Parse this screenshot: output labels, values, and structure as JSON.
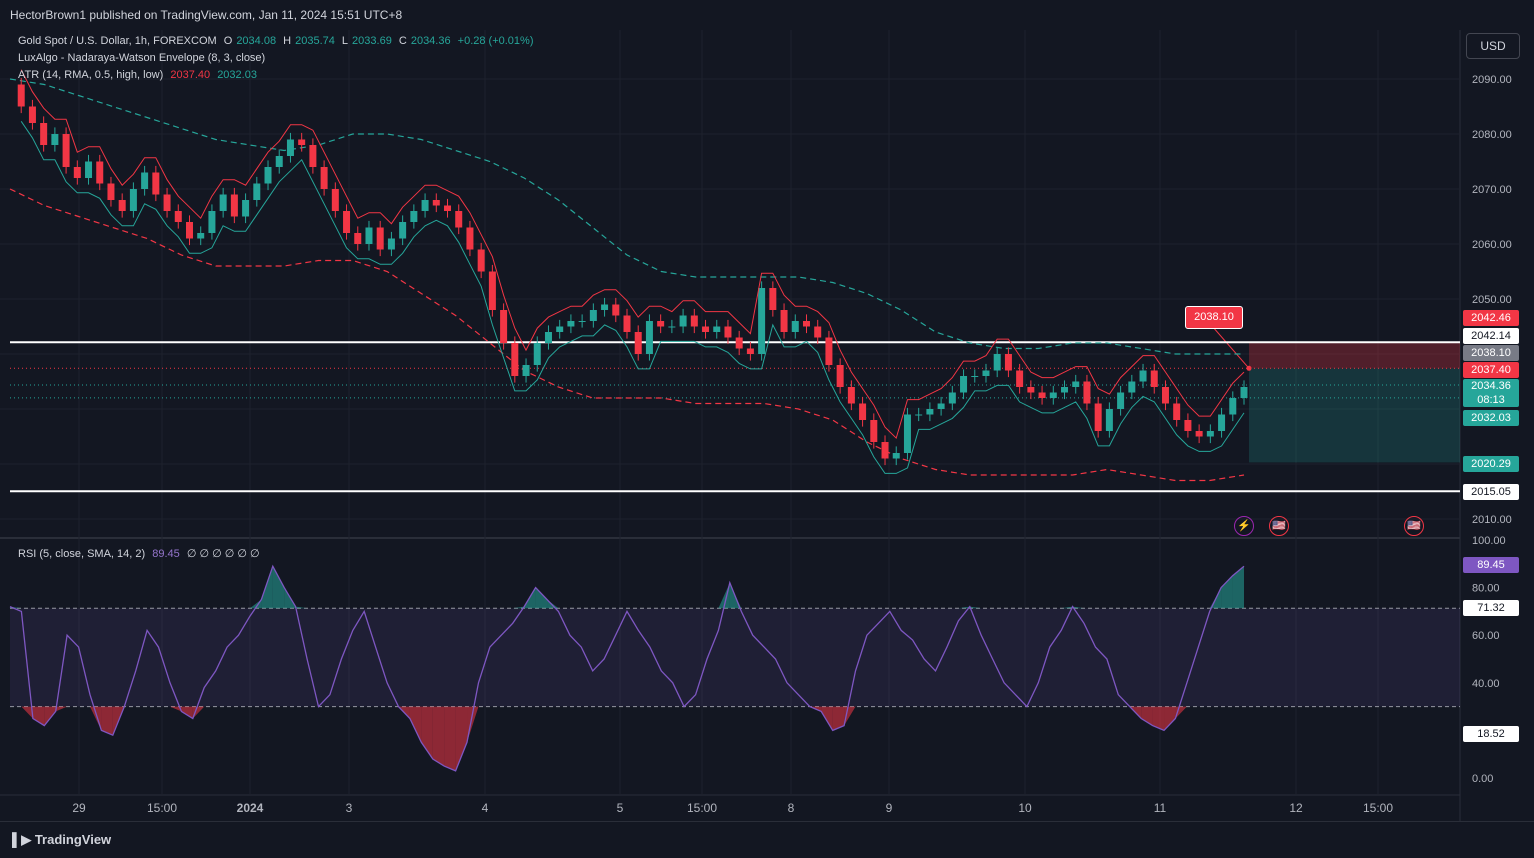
{
  "header": {
    "published": "HectorBrown1 published on TradingView.com, Jan 11, 2024 15:51 UTC+8"
  },
  "legend": {
    "symbol": "Gold Spot / U.S. Dollar, 1h, FOREXCOM",
    "o_label": "O",
    "o": "2034.08",
    "h_label": "H",
    "h": "2035.74",
    "l_label": "L",
    "l": "2033.69",
    "c_label": "C",
    "c": "2034.36",
    "change": "+0.28 (+0.01%)",
    "envelope": "LuxAlgo - Nadaraya-Watson Envelope (8, 3, close)",
    "atr": "ATR (14, RMA, 0.5, high, low)",
    "atr_high": "2037.40",
    "atr_low": "2032.03",
    "rsi": "RSI (5, close, SMA, 14, 2)",
    "rsi_value": "89.45",
    "rsi_na": "∅ ∅ ∅ ∅ ∅ ∅"
  },
  "currency_button": "USD",
  "price_tags": {
    "t1": "2042.46",
    "t2": "2042.14",
    "t3": "2038.10",
    "t4": "2037.40",
    "t5": "2034.36",
    "t5_time": "08:13",
    "t6": "2032.03",
    "t7": "2020.29",
    "t8": "2015.05",
    "rsi_t1": "89.45",
    "rsi_t2": "71.32",
    "rsi_t3": "18.52"
  },
  "callout": "2038.10",
  "events": {
    "flash": "⚡",
    "flag": "🇺🇸"
  },
  "footer": {
    "brand": "TradingView"
  },
  "colors": {
    "up": "#26a69a",
    "down": "#f23645",
    "rsi": "#7e57c2",
    "bg": "#131722"
  },
  "chart_data": [
    {
      "type": "candlestick",
      "title": "Gold Spot / U.S. Dollar, 1h, FOREXCOM",
      "price_axis": {
        "ticks": [
          "2090.00",
          "2080.00",
          "2070.00",
          "2060.00",
          "2050.00",
          "2010.00"
        ],
        "ylim": [
          2005,
          2095
        ]
      },
      "time_axis": {
        "labels": [
          "29",
          "15:00",
          "2024",
          "3",
          "4",
          "5",
          "15:00",
          "8",
          "9",
          "10",
          "11",
          "12",
          "15:00"
        ]
      },
      "horizontal_lines": [
        2042.14,
        2015.05
      ],
      "close_path": [
        2089,
        2085,
        2082,
        2078,
        2080,
        2074,
        2072,
        2075,
        2071,
        2068,
        2066,
        2070,
        2073,
        2069,
        2066,
        2064,
        2061,
        2062,
        2066,
        2069,
        2065,
        2068,
        2071,
        2074,
        2076,
        2079,
        2078,
        2074,
        2070,
        2066,
        2062,
        2060,
        2063,
        2059,
        2061,
        2064,
        2066,
        2068,
        2067,
        2066,
        2063,
        2059,
        2055,
        2048,
        2042,
        2036,
        2038,
        2042,
        2044,
        2045,
        2046,
        2046,
        2048,
        2049,
        2047,
        2044,
        2040,
        2046,
        2045,
        2045,
        2047,
        2045,
        2044,
        2045,
        2043,
        2041,
        2040,
        2052,
        2048,
        2044,
        2046,
        2045,
        2043,
        2038,
        2034,
        2031,
        2028,
        2024,
        2021,
        2022,
        2029,
        2029,
        2030,
        2031,
        2033,
        2036,
        2036,
        2037,
        2040,
        2037,
        2034,
        2033,
        2032,
        2033,
        2034,
        2035,
        2031,
        2026,
        2030,
        2033,
        2035,
        2037,
        2034,
        2031,
        2028,
        2026,
        2025,
        2026,
        2029,
        2032,
        2034
      ],
      "envelope_upper": [
        2090,
        2089,
        2087,
        2085,
        2083,
        2081,
        2079,
        2078,
        2077,
        2078,
        2080,
        2080,
        2079,
        2077,
        2075,
        2072,
        2068,
        2063,
        2058,
        2055,
        2054,
        2054,
        2054,
        2054,
        2053,
        2051,
        2048,
        2044,
        2042,
        2041,
        2041,
        2042,
        2042,
        2041,
        2040,
        2040,
        2040
      ],
      "envelope_lower": [
        2070,
        2067,
        2065,
        2063,
        2061,
        2058,
        2056,
        2056,
        2056,
        2057,
        2057,
        2055,
        2051,
        2047,
        2042,
        2037,
        2034,
        2032,
        2032,
        2032,
        2031,
        2031,
        2031,
        2030,
        2028,
        2024,
        2021,
        2019,
        2018,
        2018,
        2018,
        2018,
        2019,
        2018,
        2017,
        2017,
        2018
      ]
    },
    {
      "type": "line",
      "title": "RSI (5, close, SMA, 14, 2)",
      "ylim": [
        0,
        100
      ],
      "ticks": [
        "100.00",
        "80.00",
        "60.00",
        "40.00",
        "0.00"
      ],
      "bands": [
        71.32,
        30
      ],
      "values": [
        72,
        70,
        25,
        22,
        28,
        60,
        55,
        35,
        20,
        18,
        30,
        45,
        62,
        55,
        40,
        28,
        25,
        38,
        45,
        55,
        60,
        68,
        75,
        89,
        80,
        72,
        50,
        30,
        35,
        50,
        62,
        70,
        55,
        40,
        30,
        25,
        15,
        8,
        5,
        3,
        15,
        40,
        55,
        60,
        65,
        72,
        80,
        75,
        70,
        60,
        55,
        45,
        50,
        60,
        70,
        62,
        55,
        45,
        40,
        30,
        35,
        50,
        62,
        82,
        70,
        60,
        55,
        50,
        40,
        35,
        30,
        28,
        20,
        22,
        45,
        60,
        65,
        70,
        62,
        58,
        50,
        45,
        55,
        66,
        72,
        60,
        50,
        40,
        35,
        30,
        40,
        55,
        62,
        72,
        65,
        55,
        50,
        35,
        30,
        25,
        22,
        20,
        25,
        40,
        55,
        70,
        80,
        85,
        89
      ]
    }
  ]
}
